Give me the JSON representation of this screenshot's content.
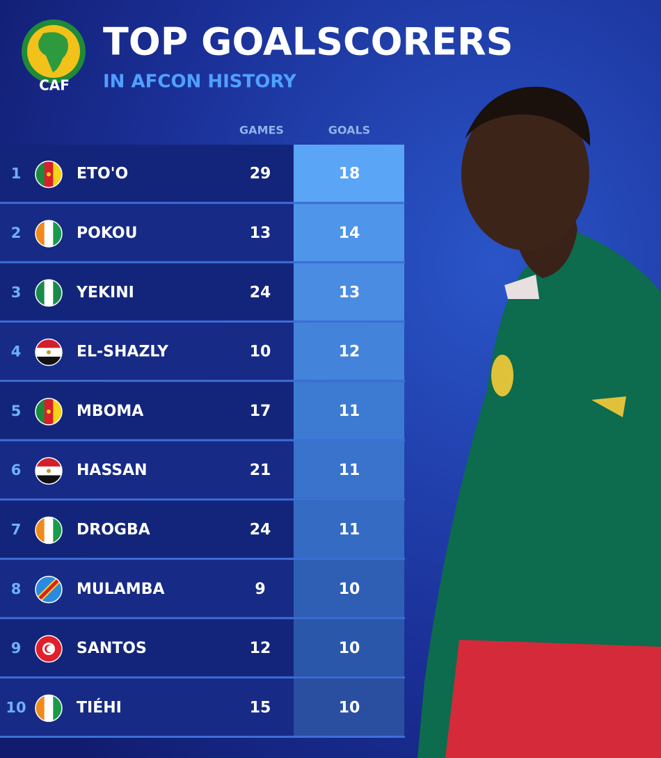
{
  "header": {
    "logo": "CAF",
    "title": "TOP GOALSCORERS",
    "subtitle": "IN AFCON HISTORY"
  },
  "table": {
    "columns": [
      "GAMES",
      "GOALS"
    ],
    "rows": [
      {
        "rank": 1,
        "name": "ETO'O",
        "games": 29,
        "goals": 18
      },
      {
        "rank": 2,
        "name": "POKOU",
        "games": 13,
        "goals": 14
      },
      {
        "rank": 3,
        "name": "YEKINI",
        "games": 24,
        "goals": 13
      },
      {
        "rank": 4,
        "name": "EL-SHAZLY",
        "games": 10,
        "goals": 12
      },
      {
        "rank": 5,
        "name": "MBOMA",
        "games": 17,
        "goals": 11
      },
      {
        "rank": 6,
        "name": "HASSAN",
        "games": 21,
        "goals": 11
      },
      {
        "rank": 7,
        "name": "DROGBA",
        "games": 24,
        "goals": 11
      },
      {
        "rank": 8,
        "name": "MULAMBA",
        "games": 9,
        "goals": 10
      },
      {
        "rank": 9,
        "name": "SANTOS",
        "games": 12,
        "goals": 10
      },
      {
        "rank": 10,
        "name": "TIÉHI",
        "games": 15,
        "goals": 10
      }
    ]
  }
}
